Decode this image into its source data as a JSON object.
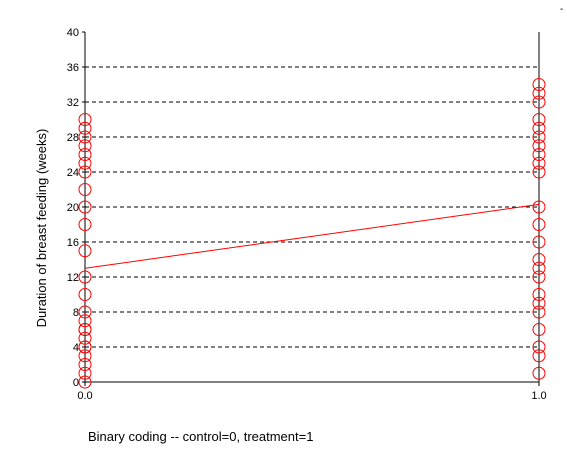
{
  "chart_data": {
    "type": "scatter",
    "title": "",
    "xlabel": "Binary coding -- control=0, treatment=1",
    "ylabel": "Duration of breast feeding (weeks)",
    "corner_mark": "-",
    "xlim": [
      0,
      1
    ],
    "ylim": [
      0,
      40
    ],
    "x_ticks": [
      0,
      1
    ],
    "x_tick_labels": [
      "0.0",
      "1.0"
    ],
    "y_ticks": [
      0,
      4,
      8,
      12,
      16,
      20,
      24,
      28,
      32,
      36,
      40
    ],
    "y_tick_labels": [
      "0",
      "4",
      "8",
      "12",
      "16",
      "20",
      "24",
      "28",
      "32",
      "36",
      "40"
    ],
    "grid": "horizontal dashed",
    "marker": "open circle",
    "marker_color": "#ff0000",
    "line_color": "#ff0000",
    "series": [
      {
        "x": [
          0,
          0,
          0,
          0,
          0,
          0,
          0,
          0,
          0,
          0,
          0,
          0,
          0,
          0,
          0,
          0,
          0,
          0,
          0,
          0,
          0,
          0,
          0,
          0
        ],
        "y": [
          0,
          1,
          2,
          3,
          4,
          5,
          6,
          7,
          8,
          10,
          12,
          15,
          18,
          20,
          22,
          24,
          25,
          26,
          27,
          28,
          29,
          30,
          4,
          6
        ]
      },
      {
        "x": [
          1,
          1,
          1,
          1,
          1,
          1,
          1,
          1,
          1,
          1,
          1,
          1,
          1,
          1,
          1,
          1,
          1,
          1,
          1,
          1,
          1,
          1,
          1
        ],
        "y": [
          1,
          4,
          6,
          8,
          9,
          10,
          12,
          13,
          14,
          16,
          18,
          20,
          24,
          25,
          26,
          27,
          28,
          29,
          30,
          32,
          33,
          34,
          3
        ]
      }
    ],
    "fit_line": {
      "x": [
        0,
        1
      ],
      "y": [
        13,
        20.3
      ]
    }
  }
}
